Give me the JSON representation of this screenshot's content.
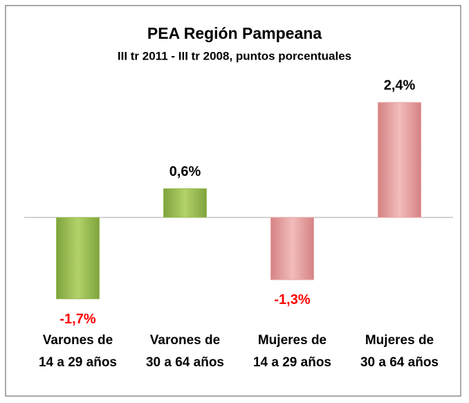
{
  "chart_data": {
    "type": "bar",
    "title": "PEA Región Pampeana",
    "subtitle": "III tr 2011 - III tr 2008, puntos porcentuales",
    "categories": [
      [
        "Varones de",
        "14 a 29 años"
      ],
      [
        "Varones de",
        "30 a 64 años"
      ],
      [
        "Mujeres de",
        "14 a 29 años"
      ],
      [
        "Mujeres de",
        "30 a 64 años"
      ]
    ],
    "values": [
      -1.7,
      0.6,
      -1.3,
      2.4
    ],
    "value_labels": [
      "-1,7%",
      "0,6%",
      "-1,3%",
      "2,4%"
    ],
    "colors": [
      "#9bbb59",
      "#9bbb59",
      "#e6a3a3",
      "#e6a3a3"
    ],
    "negative_label_color": "#ff0000"
  }
}
